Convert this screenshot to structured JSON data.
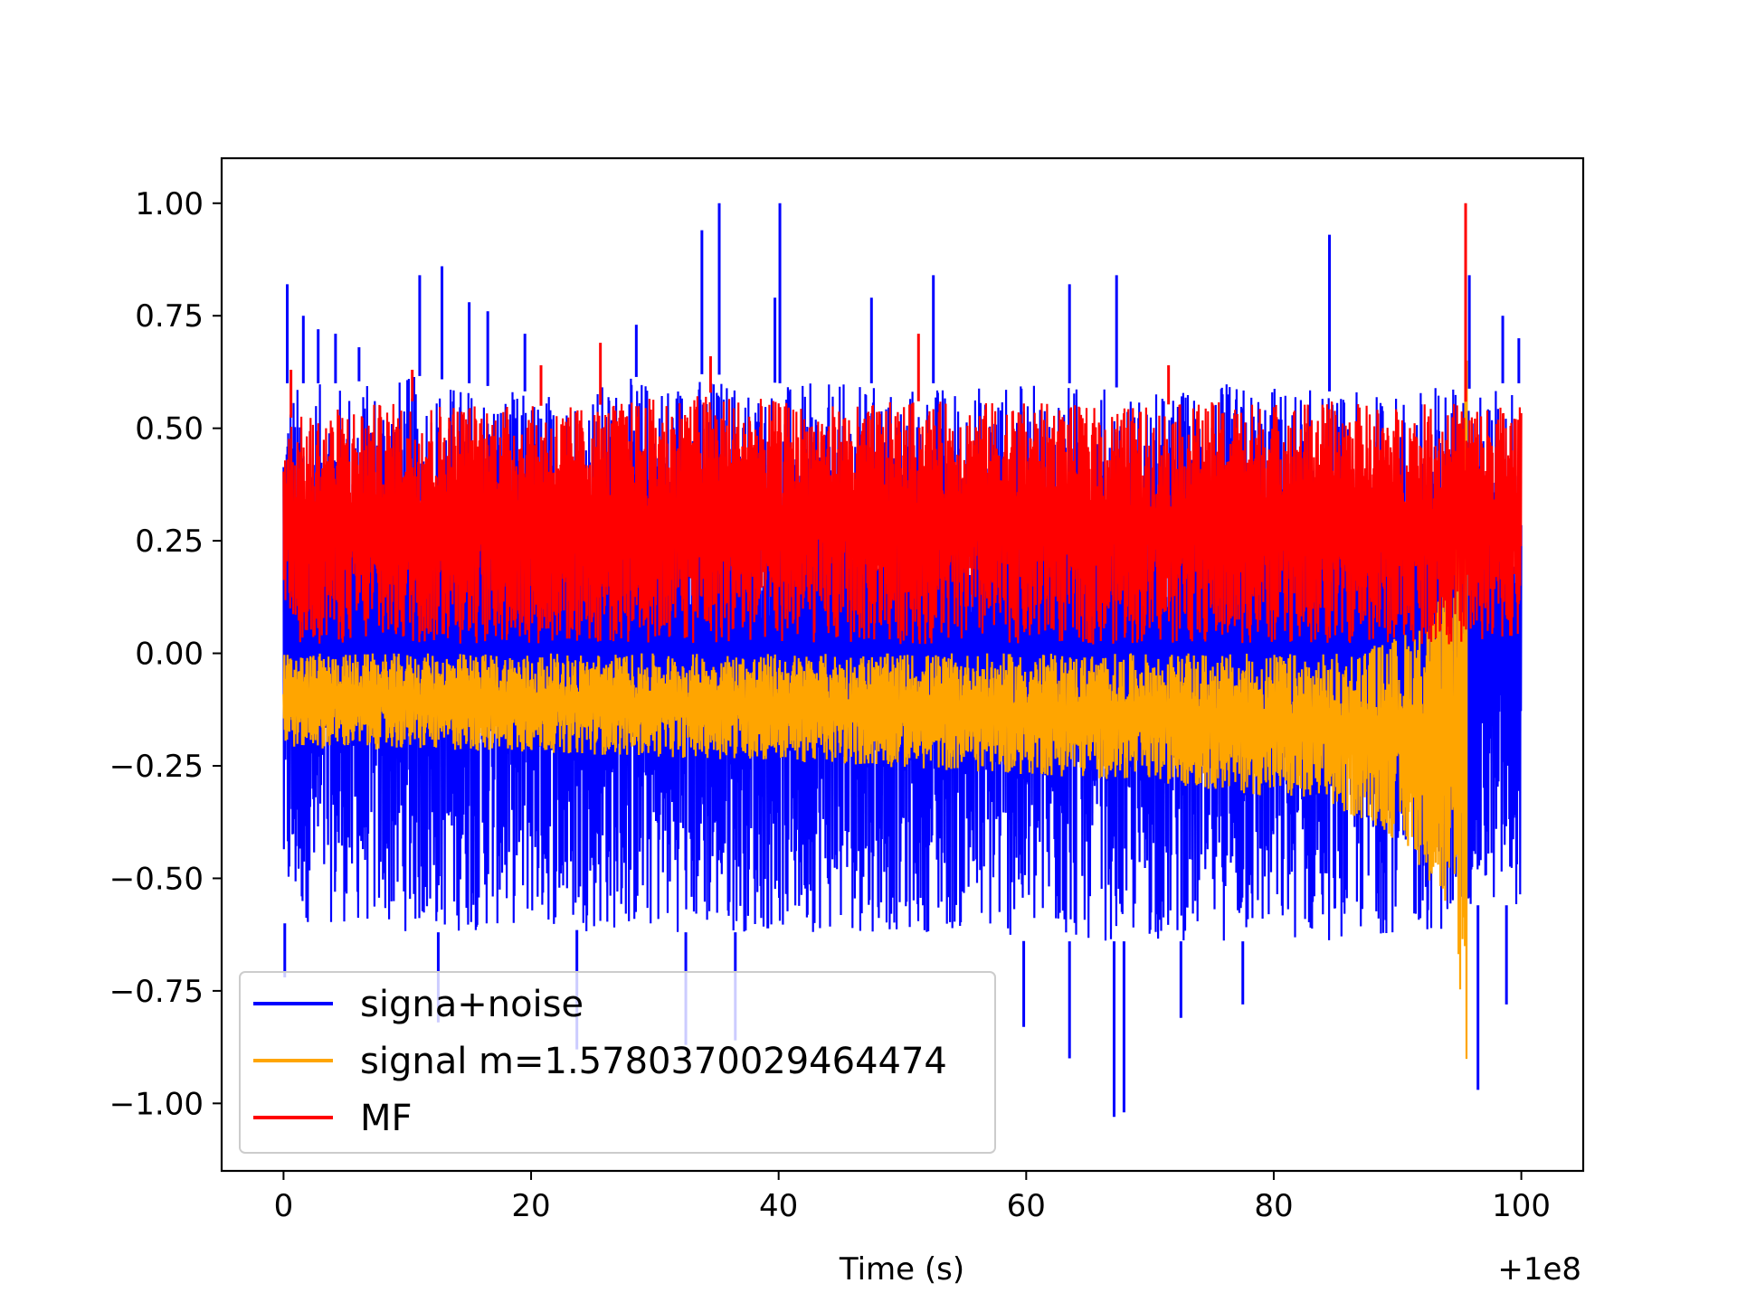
{
  "chart_data": {
    "type": "line",
    "title": "",
    "xlabel": "Time (s)",
    "ylabel": "",
    "x_offset_text": "+1e8",
    "xlim": [
      -5,
      105
    ],
    "ylim": [
      -1.15,
      1.1
    ],
    "x_ticks": [
      0,
      20,
      40,
      60,
      80,
      100
    ],
    "x_tick_labels": [
      "0",
      "20",
      "40",
      "60",
      "80",
      "100"
    ],
    "y_ticks": [
      1.0,
      0.75,
      0.5,
      0.25,
      0.0,
      -0.25,
      -0.5,
      -0.75,
      -1.0
    ],
    "y_tick_labels": [
      "1.00",
      "0.75",
      "0.50",
      "0.25",
      "0.00",
      "−0.25",
      "−0.50",
      "−0.75",
      "−1.00"
    ],
    "grid": false,
    "legend_position": "lower-left",
    "series": [
      {
        "name": "signa+noise",
        "color": "#0000ff",
        "envelope": {
          "x": [
            0,
            5,
            10,
            15,
            20,
            25,
            30,
            35,
            40,
            45,
            50,
            55,
            60,
            65,
            70,
            75,
            80,
            85,
            90,
            93,
            95,
            96,
            97,
            98,
            99,
            100
          ],
          "upper": [
            0.6,
            0.6,
            0.62,
            0.6,
            0.58,
            0.6,
            0.62,
            0.62,
            0.6,
            0.6,
            0.6,
            0.6,
            0.6,
            0.6,
            0.58,
            0.6,
            0.6,
            0.58,
            0.58,
            0.6,
            0.62,
            0.58,
            0.58,
            0.6,
            0.6,
            0.6
          ],
          "lower": [
            -0.6,
            -0.6,
            -0.62,
            -0.62,
            -0.6,
            -0.62,
            -0.62,
            -0.62,
            -0.62,
            -0.62,
            -0.62,
            -0.62,
            -0.64,
            -0.64,
            -0.64,
            -0.64,
            -0.64,
            -0.64,
            -0.62,
            -0.62,
            -0.62,
            -0.56,
            -0.56,
            -0.56,
            -0.56,
            -0.56
          ]
        },
        "spikes": [
          {
            "x": 0.3,
            "y": 0.82
          },
          {
            "x": 1.6,
            "y": 0.75
          },
          {
            "x": 2.8,
            "y": 0.72
          },
          {
            "x": 4.2,
            "y": 0.71
          },
          {
            "x": 6.1,
            "y": 0.68
          },
          {
            "x": 11,
            "y": 0.84
          },
          {
            "x": 12.8,
            "y": 0.86
          },
          {
            "x": 15,
            "y": 0.78
          },
          {
            "x": 16.5,
            "y": 0.76
          },
          {
            "x": 19.5,
            "y": 0.71
          },
          {
            "x": 28.5,
            "y": 0.73
          },
          {
            "x": 33.8,
            "y": 0.94
          },
          {
            "x": 35.2,
            "y": 1.0
          },
          {
            "x": 39.7,
            "y": 0.79
          },
          {
            "x": 40.1,
            "y": 1.0
          },
          {
            "x": 47.5,
            "y": 0.79
          },
          {
            "x": 52.5,
            "y": 0.84
          },
          {
            "x": 63.5,
            "y": 0.82
          },
          {
            "x": 67.3,
            "y": 0.84
          },
          {
            "x": 84.5,
            "y": 0.93
          },
          {
            "x": 95.8,
            "y": 0.84
          },
          {
            "x": 98.5,
            "y": 0.75
          },
          {
            "x": 99.8,
            "y": 0.7
          },
          {
            "x": 0.1,
            "y": -0.72
          },
          {
            "x": 12.5,
            "y": -0.82
          },
          {
            "x": 23.7,
            "y": -0.88
          },
          {
            "x": 32.5,
            "y": -0.87
          },
          {
            "x": 36.5,
            "y": -0.86
          },
          {
            "x": 59.8,
            "y": -0.83
          },
          {
            "x": 63.5,
            "y": -0.9
          },
          {
            "x": 67.1,
            "y": -1.03
          },
          {
            "x": 67.9,
            "y": -1.02
          },
          {
            "x": 72.5,
            "y": -0.81
          },
          {
            "x": 77.5,
            "y": -0.78
          },
          {
            "x": 96.5,
            "y": -0.97
          },
          {
            "x": 98.8,
            "y": -0.78
          }
        ]
      },
      {
        "name": "signal m=1.5780370029464474",
        "color": "#ffa500",
        "envelope": {
          "x": [
            0,
            10,
            20,
            30,
            40,
            50,
            60,
            70,
            80,
            85,
            88,
            90,
            92,
            93,
            94,
            94.5,
            95,
            95.3,
            95.6
          ],
          "upper": [
            0.0,
            0.0,
            0.0,
            0.0,
            0.0,
            0.0,
            0.0,
            0.0,
            0.0,
            0.0,
            0.02,
            0.04,
            0.07,
            0.1,
            0.16,
            0.22,
            0.35,
            0.6,
            0.9
          ],
          "lower": [
            -0.21,
            -0.215,
            -0.22,
            -0.23,
            -0.24,
            -0.255,
            -0.27,
            -0.285,
            -0.32,
            -0.35,
            -0.38,
            -0.42,
            -0.48,
            -0.53,
            -0.6,
            -0.66,
            -0.74,
            -0.85,
            -0.98
          ]
        },
        "note_end_x": 95.8
      },
      {
        "name": "MF",
        "color": "#ff0000",
        "envelope": {
          "x": [
            0,
            5,
            10,
            15,
            20,
            25,
            30,
            35,
            40,
            45,
            50,
            55,
            60,
            65,
            70,
            75,
            80,
            85,
            90,
            95,
            100
          ],
          "upper": [
            0.52,
            0.55,
            0.56,
            0.56,
            0.55,
            0.55,
            0.57,
            0.58,
            0.56,
            0.55,
            0.56,
            0.56,
            0.56,
            0.55,
            0.55,
            0.56,
            0.56,
            0.56,
            0.55,
            0.56,
            0.55
          ],
          "lower": [
            0.02,
            0.02,
            0.02,
            0.02,
            0.02,
            0.02,
            0.02,
            0.02,
            0.02,
            0.02,
            0.02,
            0.02,
            0.02,
            0.02,
            0.02,
            0.02,
            0.02,
            0.02,
            0.02,
            0.02,
            0.02
          ]
        },
        "spikes": [
          {
            "x": 0.6,
            "y": 0.63
          },
          {
            "x": 10.4,
            "y": 0.63
          },
          {
            "x": 20.8,
            "y": 0.64
          },
          {
            "x": 25.6,
            "y": 0.69
          },
          {
            "x": 34.5,
            "y": 0.66
          },
          {
            "x": 51.3,
            "y": 0.71
          },
          {
            "x": 71.5,
            "y": 0.64
          },
          {
            "x": 95.5,
            "y": 1.0
          }
        ]
      }
    ]
  }
}
